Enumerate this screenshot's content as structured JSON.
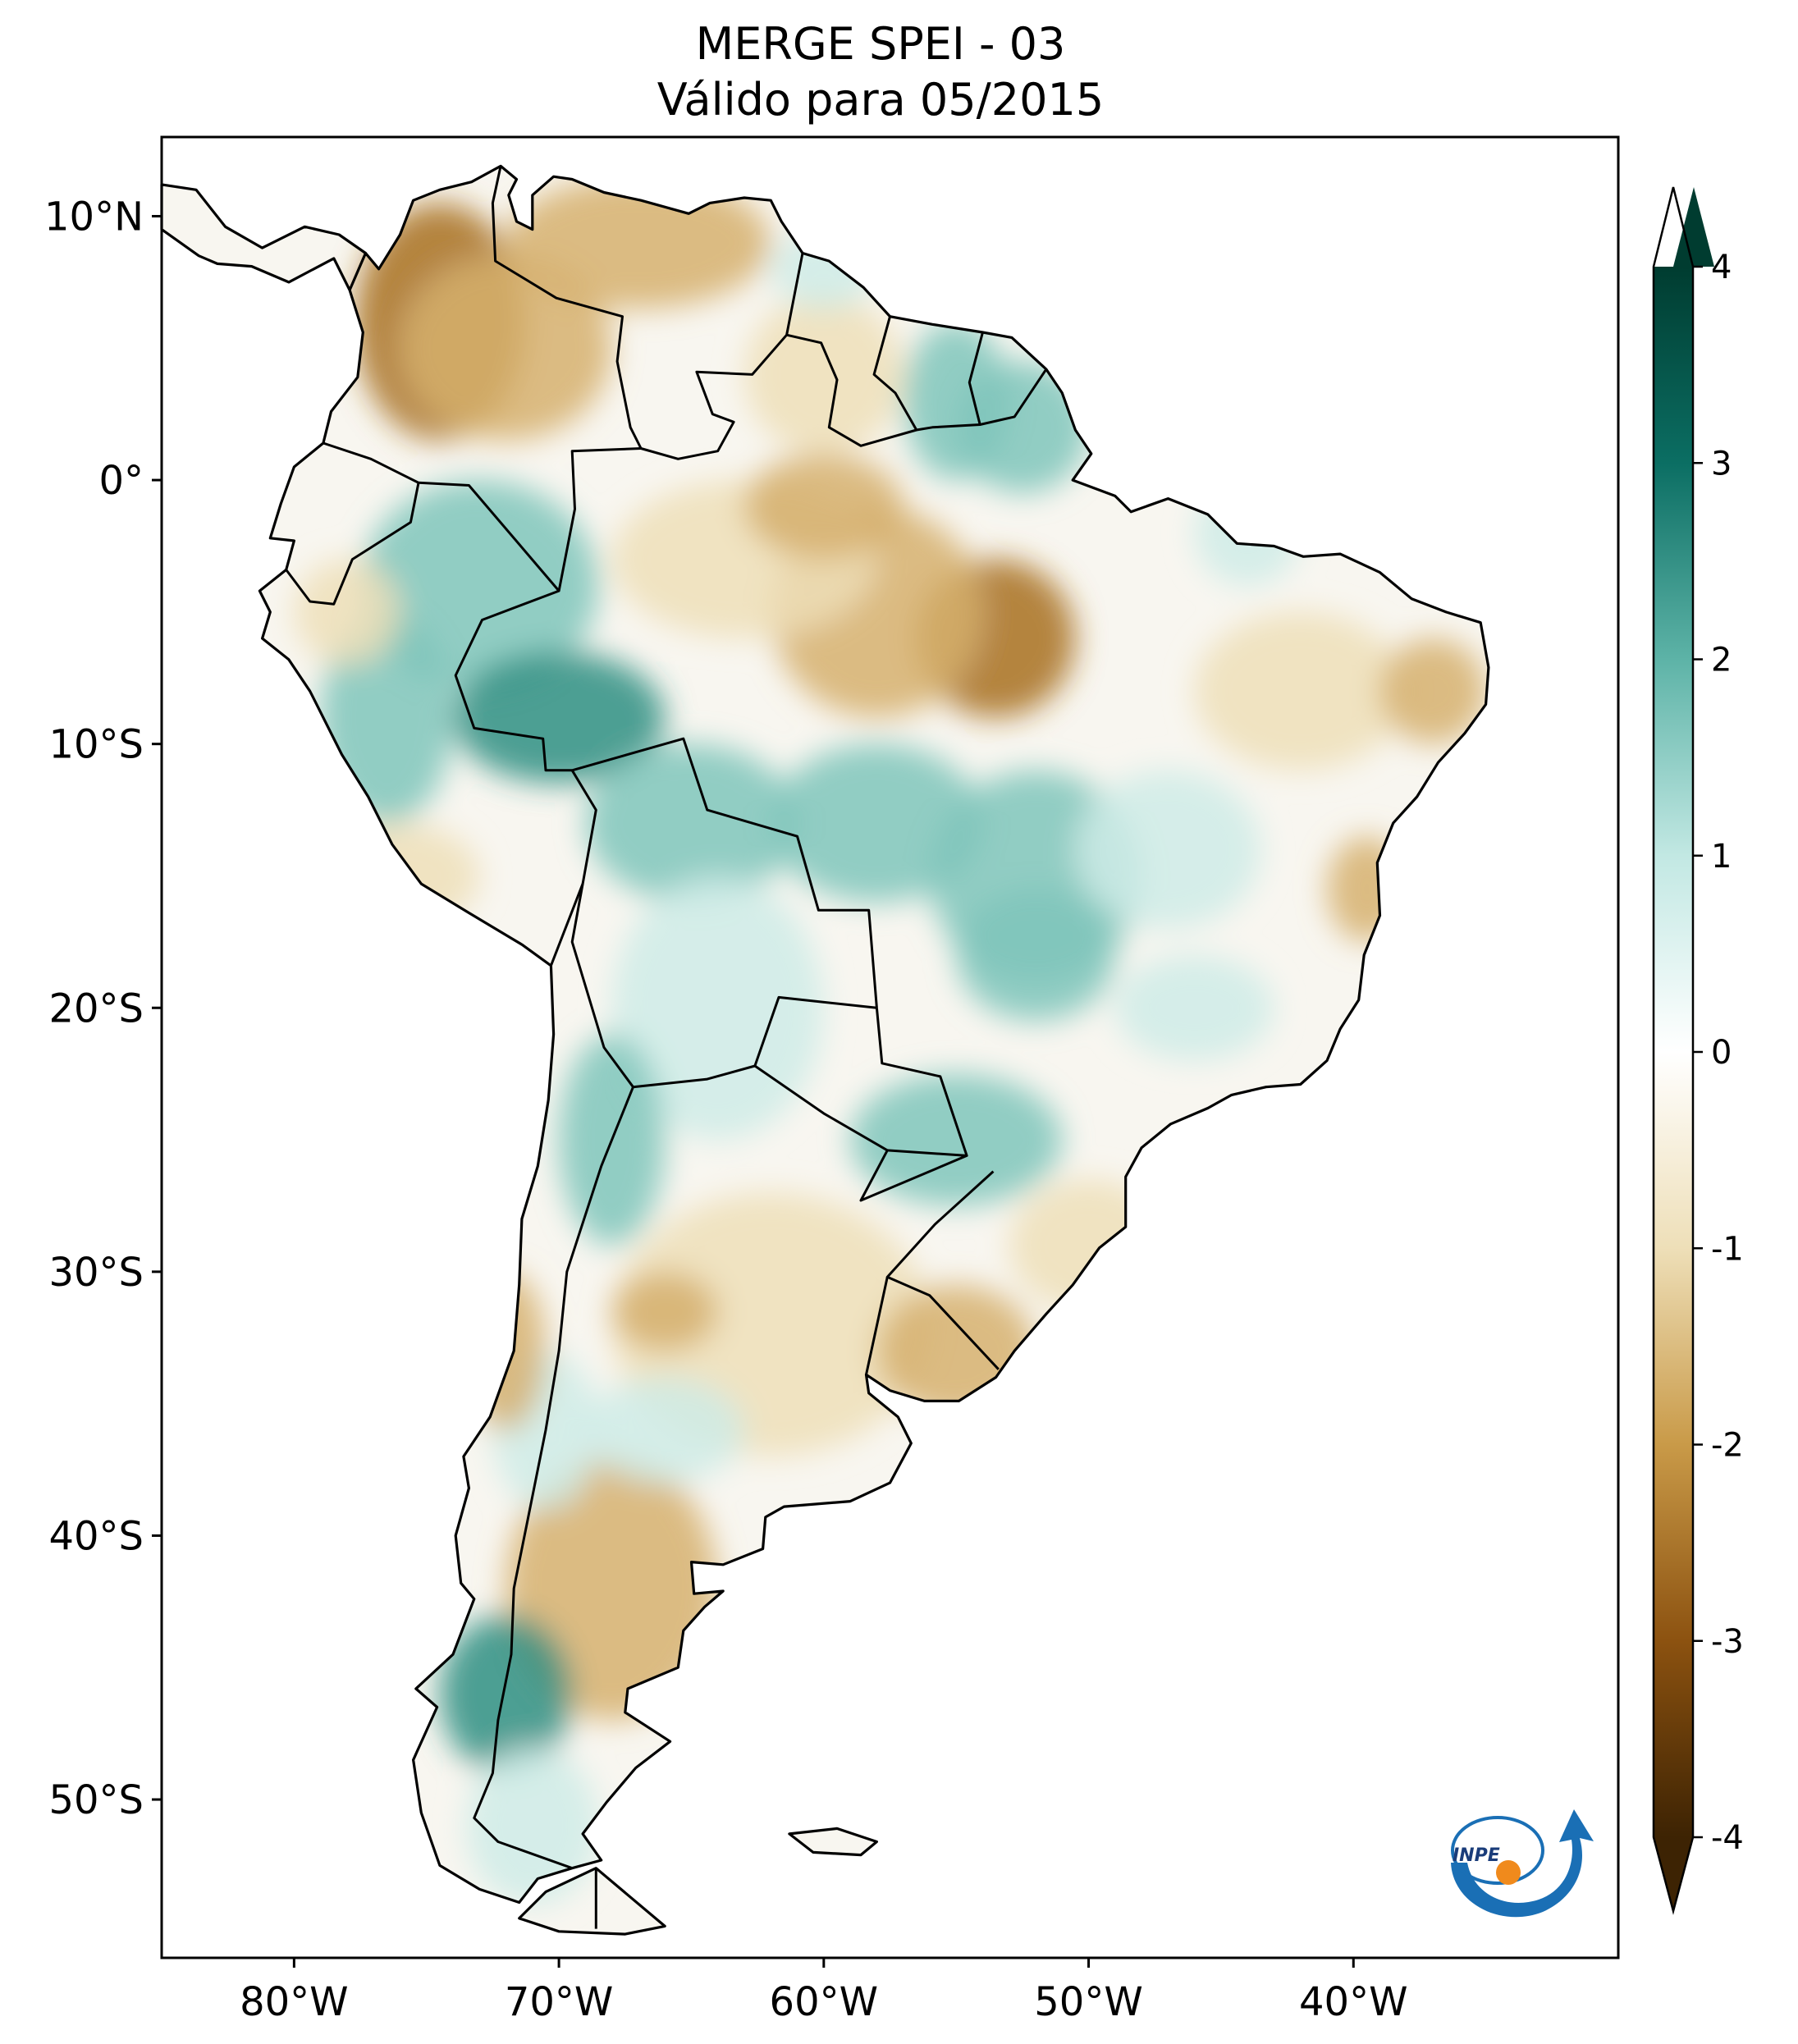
{
  "title": {
    "line1": "MERGE   SPEI - 03",
    "line2": "Válido para 05/2015"
  },
  "map": {
    "projection": "PlateCarree",
    "extent_lon": [
      -85,
      -30
    ],
    "extent_lat": [
      -56,
      13
    ],
    "lon_ticks": [
      {
        "value": -80,
        "label": "80°W"
      },
      {
        "value": -70,
        "label": "70°W"
      },
      {
        "value": -60,
        "label": "60°W"
      },
      {
        "value": -50,
        "label": "50°W"
      },
      {
        "value": -40,
        "label": "40°W"
      }
    ],
    "lat_ticks": [
      {
        "value": 10,
        "label": "10°N"
      },
      {
        "value": 0,
        "label": "0°"
      },
      {
        "value": -10,
        "label": "10°S"
      },
      {
        "value": -20,
        "label": "20°S"
      },
      {
        "value": -30,
        "label": "30°S"
      },
      {
        "value": -40,
        "label": "40°S"
      },
      {
        "value": -50,
        "label": "50°S"
      }
    ],
    "background_color": "#ffffff",
    "border_color": "#000000"
  },
  "colorbar": {
    "colormap": "BrBG",
    "range": [
      -4,
      4
    ],
    "extend": "both",
    "ticks": [
      "4",
      "3",
      "2",
      "1",
      "0",
      "-1",
      "-2",
      "-3",
      "-4"
    ],
    "colors": {
      "min": "#3d2303",
      "n3": "#8c5210",
      "n2": "#c99a48",
      "n1": "#eedfb8",
      "zero": "#ffffff",
      "p1": "#c2e8e3",
      "p2": "#5db3a7",
      "p3": "#0b6e63",
      "max": "#003c30"
    }
  },
  "spei_colors": {
    "dry_strong": "#a8701f",
    "dry": "#d6b06f",
    "dry_light": "#efdfb8",
    "neutral": "#f8f6f0",
    "wet_light": "#cfece7",
    "wet": "#7fc6bb",
    "wet_strong": "#2f8f83"
  },
  "logo": {
    "text": "INPE",
    "blue": "#1a6fb5",
    "orange": "#f08a1c"
  }
}
